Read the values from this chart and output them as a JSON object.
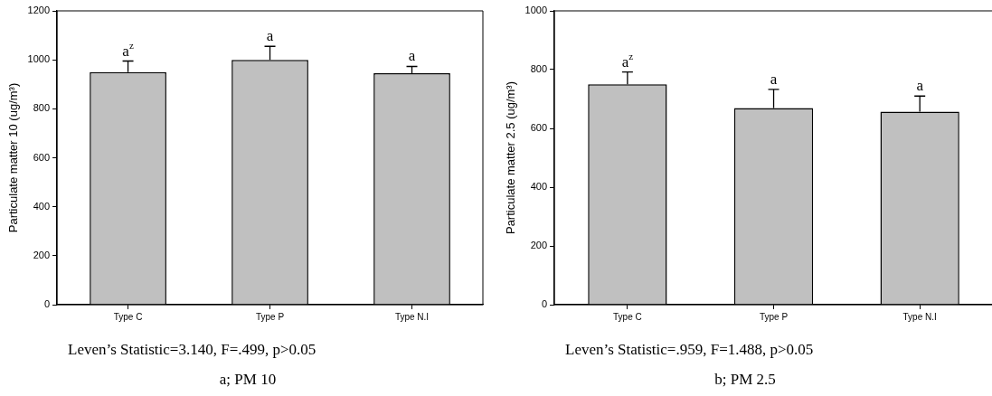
{
  "chart_data": [
    {
      "type": "bar",
      "categories": [
        "Type C",
        "Type P",
        "Type N.I"
      ],
      "values": [
        950,
        1000,
        945
      ],
      "color": "#c0c0c0",
      "errors": [
        [
          950,
          995
        ],
        [
          1000,
          1055
        ],
        [
          945,
          973
        ]
      ],
      "ylabel": "Particulate matter 10 (ug/m³)",
      "ylim": [
        0,
        1200
      ],
      "yticks": [
        0,
        200,
        400,
        600,
        800,
        1000,
        1200
      ],
      "annotations": [
        {
          "text": "a$^{z}$",
          "x": "Type C",
          "y": 995
        },
        {
          "text": "a",
          "x": "Type P",
          "y": 1055
        },
        {
          "text": "a",
          "x": "Type N.I",
          "y": 973
        },
        "Leven’s Statistic=3.140, F=.499, p>0.05",
        "a; PM 10"
      ]
    },
    {
      "type": "bar",
      "categories": [
        "Type C",
        "Type P",
        "Type N.I"
      ],
      "values": [
        750,
        669,
        657
      ],
      "color": "#c0c0c0",
      "errors": [
        [
          750,
          792
        ],
        [
          669,
          733
        ],
        [
          657,
          710
        ]
      ],
      "ylabel": "Particulate matter 2.5 (ug/m³)",
      "ylim": [
        0,
        1000
      ],
      "yticks": [
        0,
        200,
        400,
        600,
        800,
        1000
      ],
      "annotations": [
        {
          "text": "a$^{z}$",
          "x": "Type C",
          "y": 792
        },
        {
          "text": "a",
          "x": "Type P",
          "y": 733
        },
        {
          "text": "a",
          "x": "Type N.I",
          "y": 710
        },
        "Leven’s Statistic=.959, F=1.488, p>0.05",
        "b; PM 2.5"
      ]
    }
  ]
}
